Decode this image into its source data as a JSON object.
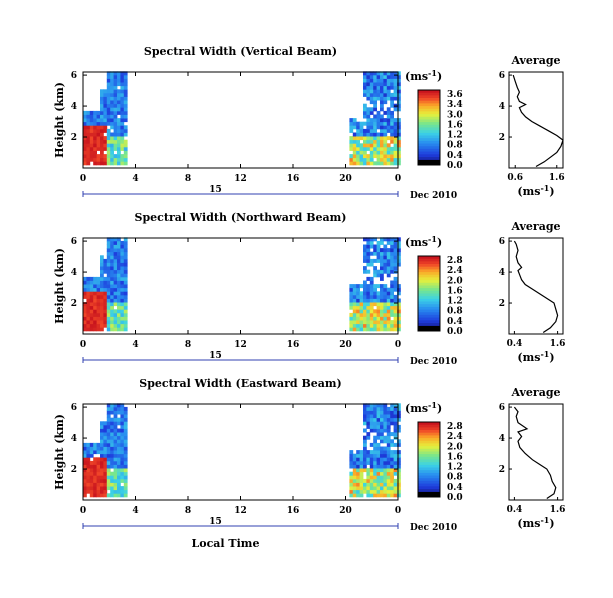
{
  "chart_data": [
    {
      "type": "heatmap",
      "title": "Spectral Width (Vertical Beam)",
      "ylabel": "Height (km)",
      "yticks": [
        "6",
        "4",
        "2"
      ],
      "xticks": [
        "0",
        "4",
        "8",
        "12",
        "16",
        "20",
        "0"
      ],
      "day_label": "15",
      "date_label": "Dec 2010",
      "colorbar": {
        "unit": "(ms",
        "unit_exp": "-1",
        "unit_close": ")",
        "ticks": [
          "3.6",
          "3.4",
          "3.0",
          "1.6",
          "1.2",
          "0.8",
          "0.4",
          "0.0"
        ]
      },
      "profile": {
        "title": "Average",
        "yticks": [
          "6",
          "4",
          "2"
        ],
        "xticks": [
          "0.6",
          "1.6"
        ],
        "xlabel": "(ms",
        "xlabel_exp": "-1",
        "xlabel_close": ")",
        "points": [
          [
            1.1,
            0.1
          ],
          [
            1.3,
            0.4
          ],
          [
            1.45,
            0.7
          ],
          [
            1.6,
            1.0
          ],
          [
            1.7,
            1.4
          ],
          [
            1.75,
            1.8
          ],
          [
            1.6,
            2.1
          ],
          [
            1.4,
            2.4
          ],
          [
            1.2,
            2.7
          ],
          [
            1.0,
            3.0
          ],
          [
            0.85,
            3.3
          ],
          [
            0.75,
            3.6
          ],
          [
            0.7,
            3.9
          ],
          [
            0.85,
            4.1
          ],
          [
            0.7,
            4.3
          ],
          [
            0.65,
            4.6
          ],
          [
            0.7,
            4.9
          ],
          [
            0.65,
            5.2
          ],
          [
            0.6,
            5.6
          ],
          [
            0.55,
            6.0
          ]
        ]
      }
    },
    {
      "type": "heatmap",
      "title": "Spectral Width (Northward Beam)",
      "ylabel": "Height (km)",
      "yticks": [
        "6",
        "4",
        "2"
      ],
      "xticks": [
        "0",
        "4",
        "8",
        "12",
        "16",
        "20",
        "0"
      ],
      "day_label": "15",
      "date_label": "Dec 2010",
      "colorbar": {
        "unit": "(ms",
        "unit_exp": "-1",
        "unit_close": ")",
        "ticks": [
          "2.8",
          "2.4",
          "2.0",
          "1.6",
          "1.2",
          "0.8",
          "0.4",
          "0.0"
        ]
      },
      "profile": {
        "title": "Average",
        "yticks": [
          "6",
          "4",
          "2"
        ],
        "xticks": [
          "0.4",
          "1.6"
        ],
        "xlabel": "(ms",
        "xlabel_exp": "-1",
        "xlabel_close": ")",
        "points": [
          [
            1.2,
            0.1
          ],
          [
            1.4,
            0.4
          ],
          [
            1.55,
            0.8
          ],
          [
            1.6,
            1.2
          ],
          [
            1.55,
            1.6
          ],
          [
            1.5,
            2.0
          ],
          [
            1.3,
            2.3
          ],
          [
            1.1,
            2.6
          ],
          [
            0.9,
            2.9
          ],
          [
            0.7,
            3.2
          ],
          [
            0.6,
            3.5
          ],
          [
            0.55,
            3.8
          ],
          [
            0.5,
            4.1
          ],
          [
            0.6,
            4.3
          ],
          [
            0.5,
            4.6
          ],
          [
            0.45,
            5.0
          ],
          [
            0.5,
            5.4
          ],
          [
            0.45,
            5.8
          ],
          [
            0.4,
            6.0
          ]
        ]
      }
    },
    {
      "type": "heatmap",
      "title": "Spectral Width (Eastward Beam)",
      "ylabel": "Height (km)",
      "yticks": [
        "6",
        "4",
        "2"
      ],
      "xticks": [
        "0",
        "4",
        "8",
        "12",
        "16",
        "20",
        "0"
      ],
      "day_label": "15",
      "date_label": "Dec 2010",
      "xlabel": "Local Time",
      "colorbar": {
        "unit": "(ms",
        "unit_exp": "-1",
        "unit_close": ")",
        "ticks": [
          "2.8",
          "2.4",
          "2.0",
          "1.6",
          "1.2",
          "0.8",
          "0.4",
          "0.0"
        ]
      },
      "profile": {
        "title": "Average",
        "yticks": [
          "6",
          "4",
          "2"
        ],
        "xticks": [
          "0.4",
          "1.6"
        ],
        "xlabel": "(ms",
        "xlabel_exp": "-1",
        "xlabel_close": ")",
        "points": [
          [
            1.3,
            0.1
          ],
          [
            1.5,
            0.4
          ],
          [
            1.55,
            0.8
          ],
          [
            1.45,
            1.2
          ],
          [
            1.4,
            1.6
          ],
          [
            1.3,
            2.0
          ],
          [
            1.1,
            2.3
          ],
          [
            0.9,
            2.6
          ],
          [
            0.7,
            3.0
          ],
          [
            0.55,
            3.4
          ],
          [
            0.5,
            3.8
          ],
          [
            0.6,
            4.1
          ],
          [
            0.5,
            4.4
          ],
          [
            0.75,
            4.6
          ],
          [
            0.5,
            5.0
          ],
          [
            0.45,
            5.4
          ],
          [
            0.5,
            5.7
          ],
          [
            0.4,
            6.0
          ]
        ]
      }
    }
  ]
}
